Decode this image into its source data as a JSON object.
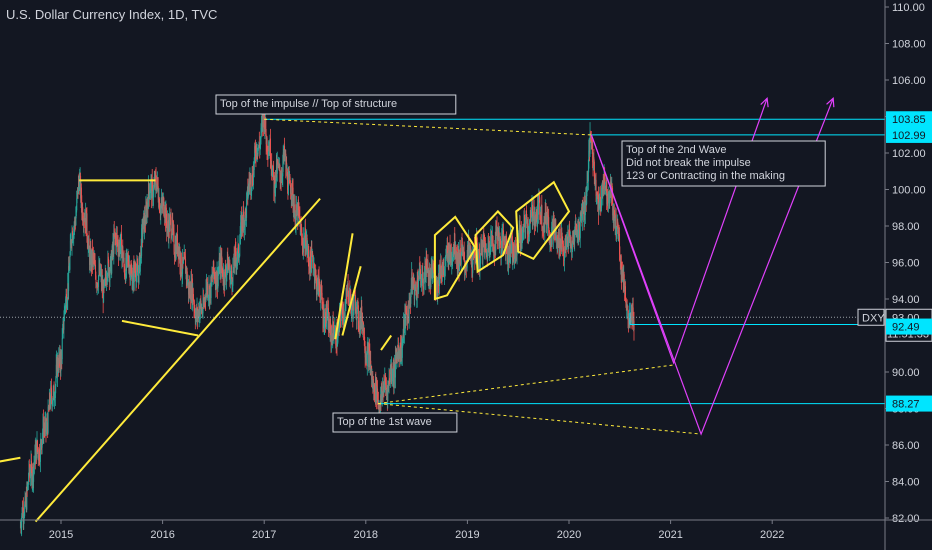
{
  "header": {
    "title": "U.S. Dollar Currency Index, 1D, TVC"
  },
  "colors": {
    "background": "#131722",
    "up": "#26a69a",
    "down": "#ef5350",
    "annotation_yellow": "#ffeb3b",
    "level_cyan": "#00e5ff",
    "projection_magenta": "#e040fb",
    "text": "#d1d4dc"
  },
  "chart_data": {
    "type": "candlestick",
    "symbol": "DXY",
    "interval": "1D",
    "y_axis_ticks": [
      "110.00",
      "108.00",
      "106.00",
      "104.00",
      "102.00",
      "100.00",
      "98.00",
      "96.00",
      "94.00",
      "92.00",
      "90.00",
      "88.00",
      "86.00",
      "84.00",
      "82.00"
    ],
    "x_axis_ticks": [
      "2015",
      "2016",
      "2017",
      "2018",
      "2019",
      "2020",
      "2021",
      "2022"
    ],
    "ylim": [
      82,
      110
    ],
    "xlim": [
      2014.45,
      2023.15
    ],
    "price_series": [
      [
        2014.6,
        81.5
      ],
      [
        2014.7,
        84.5
      ],
      [
        2014.85,
        87.0
      ],
      [
        2015.0,
        91.0
      ],
      [
        2015.1,
        97.0
      ],
      [
        2015.18,
        100.3
      ],
      [
        2015.3,
        96.0
      ],
      [
        2015.42,
        94.6
      ],
      [
        2015.55,
        97.5
      ],
      [
        2015.62,
        96.0
      ],
      [
        2015.75,
        95.2
      ],
      [
        2015.85,
        99.5
      ],
      [
        2015.92,
        100.4
      ],
      [
        2016.0,
        99.0
      ],
      [
        2016.1,
        97.5
      ],
      [
        2016.25,
        95.0
      ],
      [
        2016.35,
        93.0
      ],
      [
        2016.45,
        94.6
      ],
      [
        2016.55,
        95.6
      ],
      [
        2016.7,
        95.5
      ],
      [
        2016.8,
        98.5
      ],
      [
        2016.9,
        101.5
      ],
      [
        2017.0,
        103.8
      ],
      [
        2017.1,
        100.5
      ],
      [
        2017.2,
        101.5
      ],
      [
        2017.3,
        99.0
      ],
      [
        2017.4,
        97.0
      ],
      [
        2017.5,
        95.5
      ],
      [
        2017.6,
        93.0
      ],
      [
        2017.7,
        91.8
      ],
      [
        2017.82,
        94.2
      ],
      [
        2017.95,
        93.0
      ],
      [
        2018.05,
        90.0
      ],
      [
        2018.12,
        88.3
      ],
      [
        2018.25,
        89.8
      ],
      [
        2018.35,
        91.5
      ],
      [
        2018.45,
        94.5
      ],
      [
        2018.6,
        95.5
      ],
      [
        2018.7,
        95.0
      ],
      [
        2018.85,
        96.8
      ],
      [
        2018.95,
        96.2
      ],
      [
        2019.1,
        96.4
      ],
      [
        2019.3,
        97.4
      ],
      [
        2019.45,
        96.5
      ],
      [
        2019.55,
        97.8
      ],
      [
        2019.7,
        98.9
      ],
      [
        2019.85,
        97.6
      ],
      [
        2019.95,
        96.8
      ],
      [
        2020.05,
        97.3
      ],
      [
        2020.15,
        98.9
      ],
      [
        2020.22,
        102.99
      ],
      [
        2020.28,
        99.0
      ],
      [
        2020.35,
        100.4
      ],
      [
        2020.42,
        99.5
      ],
      [
        2020.5,
        96.8
      ],
      [
        2020.55,
        94.2
      ],
      [
        2020.6,
        92.5
      ],
      [
        2020.64,
        93.0
      ]
    ],
    "horizontal_levels": [
      {
        "value": 103.85,
        "label": "103.85"
      },
      {
        "value": 102.99,
        "label": "102.99"
      },
      {
        "value": 88.27,
        "label": "88.27"
      }
    ],
    "current": {
      "symbol_label": "DXY",
      "price_label": "93.00",
      "price": 93.0,
      "countdown": "11:51:33",
      "low_label": "92.49",
      "low": 92.49
    },
    "annotations": [
      {
        "text": "Top of the impulse // Top of structure"
      },
      {
        "text": "Top of the 1st wave"
      },
      {
        "text": "Top of the 2nd Wave\nDid not break the impulse\n123 or Contracting in the making"
      }
    ],
    "trendlines_yellow": [
      [
        [
          2015.18,
          100.5
        ],
        [
          2015.93,
          100.5
        ]
      ],
      [
        [
          2015.6,
          92.8
        ],
        [
          2016.35,
          92.0
        ]
      ],
      [
        [
          2014.75,
          81.8
        ],
        [
          2017.55,
          99.5
        ]
      ],
      [
        [
          2014.3,
          85.0
        ],
        [
          2014.6,
          85.3
        ]
      ]
    ],
    "wave_shapes_yellow": [
      [
        [
          2017.7,
          91.8
        ],
        [
          2017.87,
          97.6
        ]
      ],
      [
        [
          2017.77,
          92.0
        ],
        [
          2017.95,
          95.8
        ]
      ],
      [
        [
          2018.15,
          91.2
        ],
        [
          2018.25,
          92.0
        ]
      ],
      [
        [
          2018.68,
          94.0
        ],
        [
          2018.68,
          97.5
        ],
        [
          2018.88,
          98.5
        ],
        [
          2019.08,
          96.8
        ],
        [
          2018.8,
          94.2
        ]
      ],
      [
        [
          2019.1,
          95.5
        ],
        [
          2019.08,
          97.5
        ],
        [
          2019.3,
          98.8
        ],
        [
          2019.45,
          97.9
        ],
        [
          2019.35,
          96.4
        ]
      ],
      [
        [
          2019.5,
          96.6
        ],
        [
          2019.48,
          98.8
        ],
        [
          2019.85,
          100.4
        ],
        [
          2020.0,
          98.8
        ],
        [
          2019.65,
          96.2
        ]
      ]
    ],
    "dashed_yellow": [
      [
        [
          2017.0,
          103.85
        ],
        [
          2020.22,
          102.99
        ]
      ],
      [
        [
          2018.12,
          88.27
        ],
        [
          2021.05,
          90.4
        ]
      ],
      [
        [
          2018.12,
          88.27
        ],
        [
          2021.3,
          86.6
        ]
      ]
    ],
    "projections_magenta": [
      [
        [
          2020.22,
          102.99
        ],
        [
          2021.03,
          90.5
        ],
        [
          2021.95,
          105.0
        ]
      ],
      [
        [
          2020.22,
          102.99
        ],
        [
          2021.3,
          86.6
        ],
        [
          2022.6,
          105.0
        ]
      ]
    ]
  }
}
